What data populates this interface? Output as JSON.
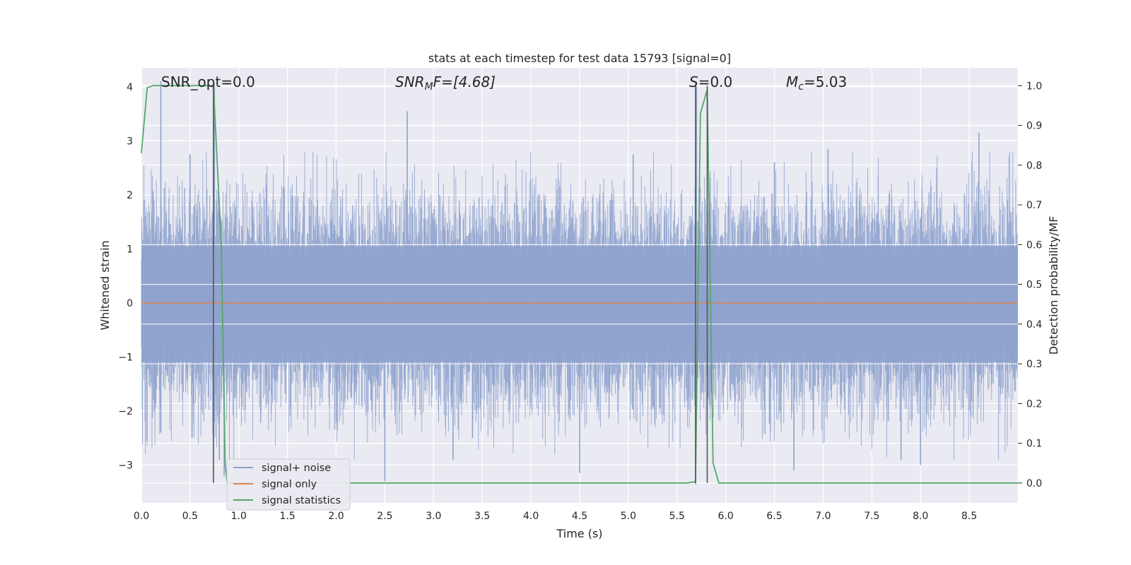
{
  "chart_data": {
    "type": "line",
    "title": "stats at each timestep for test data 15793 [signal=0]",
    "xlabel": "Time (s)",
    "ylabel_left": "Whitened strain",
    "ylabel_right": "Detection probability/MF",
    "xlim": [
      0,
      9.0
    ],
    "ylim_left": [
      -3.7,
      4.35
    ],
    "ylim_right": [
      -0.05,
      1.045
    ],
    "xticks": [
      "0.0",
      "0.5",
      "1.0",
      "1.5",
      "2.0",
      "2.5",
      "3.0",
      "3.5",
      "4.0",
      "4.5",
      "5.0",
      "5.5",
      "6.0",
      "6.5",
      "7.0",
      "7.5",
      "8.0",
      "8.5"
    ],
    "yticks_left": [
      "−3",
      "−2",
      "−1",
      "0",
      "1",
      "2",
      "3",
      "4"
    ],
    "yticks_right": [
      "0.0",
      "0.1",
      "0.2",
      "0.3",
      "0.4",
      "0.5",
      "0.6",
      "0.7",
      "0.8",
      "0.9",
      "1.0"
    ],
    "grid": true,
    "legend_position": "lower-left",
    "annotations": {
      "snr_opt": "SNR_opt=0.0",
      "snr_mf_italic": "SNR",
      "snr_mf_sub": "M",
      "snr_mf_rest": "F=[4.68]",
      "s_italic": "S",
      "s_rest": "=0.0",
      "mc_italic": "M",
      "mc_sub": "c",
      "mc_rest": "=5.03"
    },
    "colors": {
      "signal_noise": "#8fa3cd",
      "signal_only": "#dd8452",
      "signal_statistics": "#55a868",
      "marker_lines": "#555555",
      "background": "#eaeaf2"
    },
    "marker_lines_x": [
      0.74,
      5.69,
      5.81
    ],
    "series": [
      {
        "name": "signal+ noise",
        "axis": "left",
        "description_type": "noise",
        "spikes": [
          {
            "x": 0.2,
            "y": 4.1
          },
          {
            "x": 0.2,
            "y": -2.4
          },
          {
            "x": 0.5,
            "y": 2.75
          },
          {
            "x": 0.52,
            "y": -2.5
          },
          {
            "x": 0.75,
            "y": 4.05
          },
          {
            "x": 0.8,
            "y": -2.9
          },
          {
            "x": 0.85,
            "y": -3.2
          },
          {
            "x": 2.5,
            "y": -3.3
          },
          {
            "x": 2.73,
            "y": 3.55
          },
          {
            "x": 3.2,
            "y": -2.9
          },
          {
            "x": 3.4,
            "y": -2.5
          },
          {
            "x": 4.5,
            "y": -3.15
          },
          {
            "x": 5.05,
            "y": 2.75
          },
          {
            "x": 5.7,
            "y": 4.0
          },
          {
            "x": 6.5,
            "y": 2.6
          },
          {
            "x": 6.7,
            "y": -3.1
          },
          {
            "x": 7.05,
            "y": 2.85
          },
          {
            "x": 7.8,
            "y": -2.9
          },
          {
            "x": 8.0,
            "y": -3.0
          },
          {
            "x": 8.6,
            "y": 3.15
          }
        ]
      },
      {
        "name": "signal only",
        "axis": "left",
        "x": [
          0,
          9.0
        ],
        "y": [
          0,
          0
        ]
      },
      {
        "name": "signal statistics",
        "axis": "right",
        "x": [
          0,
          0.06,
          0.12,
          0.5,
          0.73,
          0.74,
          0.82,
          0.86,
          0.88,
          5.6,
          5.68,
          5.69,
          5.74,
          5.81,
          5.87,
          5.93,
          9.0
        ],
        "y": [
          0.83,
          0.995,
          1.0,
          1.0,
          1.0,
          1.0,
          0.6,
          0.05,
          0.0,
          0.0,
          0.003,
          0.0,
          0.93,
          0.99,
          0.05,
          0.0,
          0.0
        ]
      }
    ]
  }
}
